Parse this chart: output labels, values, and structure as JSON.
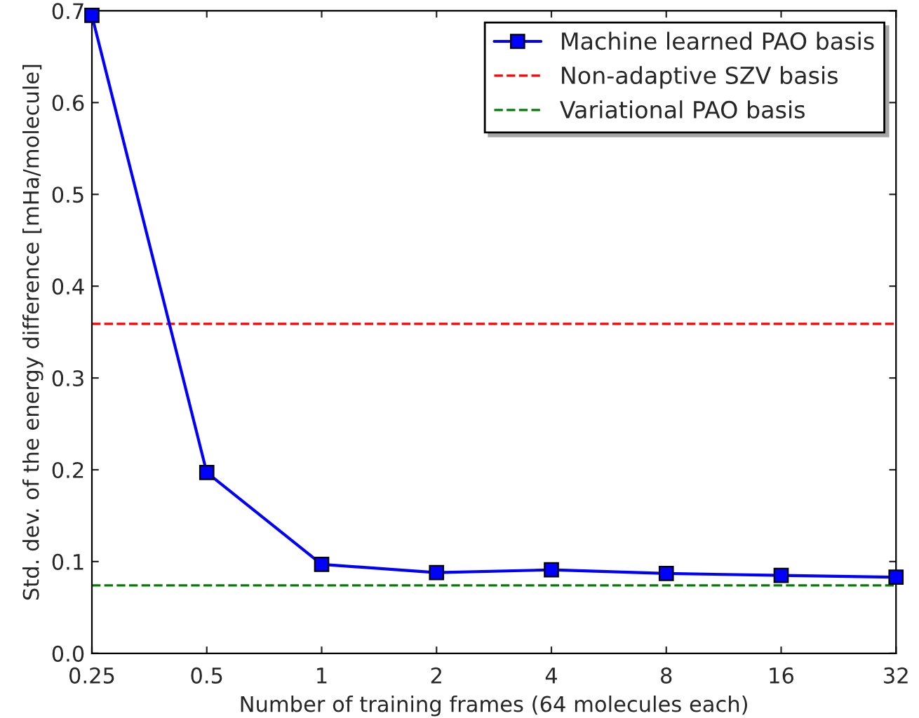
{
  "chart_data": {
    "type": "line",
    "xlabel": "Number of training frames (64 molecules each)",
    "ylabel": "Std. dev. of the energy difference [mHa/molecule]",
    "log": "x",
    "xlim": [
      0.25,
      32
    ],
    "xticks": [
      0.25,
      0.5,
      1,
      2,
      4,
      8,
      16,
      32
    ],
    "ylim": [
      0.0,
      0.7
    ],
    "yticks": [
      {
        "value": 0,
        "label": "0.0"
      },
      0.1,
      0.2,
      0.3,
      0.4,
      0.5,
      0.6,
      0.7
    ],
    "x": [
      0.25,
      0.5,
      1,
      2,
      4,
      8,
      16,
      32
    ],
    "series": [
      {
        "name": "Machine learned PAO basis",
        "color": "#0000ff",
        "values": [
          0.695,
          0.197,
          0.097,
          0.088,
          0.091,
          0.087,
          0.085,
          0.083
        ]
      }
    ],
    "ref_lines": [
      {
        "axis": "y",
        "value": 0.359,
        "label": "Non-adaptive SZV basis",
        "color": "#ff0000",
        "line_style": "dashed"
      },
      {
        "axis": "y",
        "value": 0.074,
        "label": "Variational PAO basis",
        "color": "#008000",
        "line_style": "dashed"
      }
    ],
    "marker": "square",
    "line_style": "solid",
    "grid": false,
    "legend": "top right"
  }
}
